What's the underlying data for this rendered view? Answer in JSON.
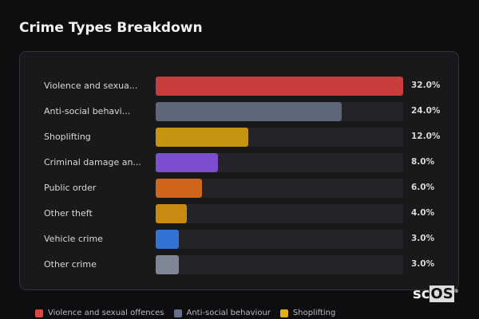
{
  "chart_data": {
    "type": "bar",
    "orientation": "horizontal",
    "title": "Crime Types Breakdown",
    "categories": [
      "Violence and sexua...",
      "Anti-social behavi...",
      "Shoplifting",
      "Criminal damage an...",
      "Public order",
      "Other theft",
      "Vehicle crime",
      "Other crime"
    ],
    "values": [
      32.0,
      24.0,
      12.0,
      8.0,
      6.0,
      4.0,
      3.0,
      3.0
    ],
    "value_labels": [
      "32.0%",
      "24.0%",
      "12.0%",
      "8.0%",
      "6.0%",
      "4.0%",
      "3.0%",
      "3.0%"
    ],
    "colors": [
      "#c83c3c",
      "#5d6778",
      "#c4960f",
      "#7b4fd0",
      "#d0661a",
      "#c98a12",
      "#3473d6",
      "#7e8694"
    ],
    "xlim": [
      0,
      32
    ],
    "legend": {
      "placement": "bottom",
      "items": [
        {
          "label": "Violence and sexual offences",
          "color": "#e04444"
        },
        {
          "label": "Anti-social behaviour",
          "color": "#667088"
        },
        {
          "label": "Shoplifting",
          "color": "#e0b015"
        }
      ]
    }
  },
  "logo": {
    "text_a": "sc",
    "text_b": "OS",
    "mark": "®"
  }
}
